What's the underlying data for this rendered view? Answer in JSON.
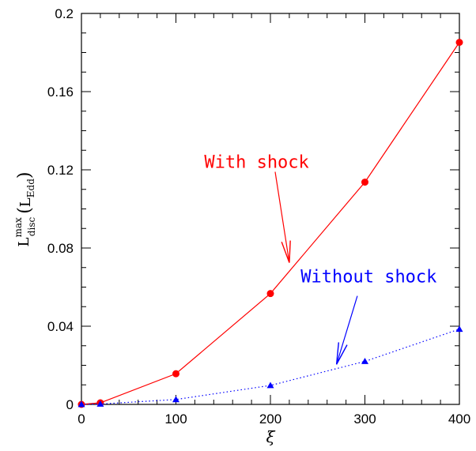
{
  "chart_data": {
    "type": "line",
    "xlabel": "ξ",
    "ylabel": {
      "main": "L",
      "sup": "max",
      "sub": "disc",
      "unit_open": "(",
      "unit_main": "L",
      "unit_sub": "Edd",
      "unit_close": ")"
    },
    "xlim": [
      0,
      400
    ],
    "ylim": [
      0,
      0.2
    ],
    "xticks": [
      0,
      100,
      200,
      300,
      400
    ],
    "xtick_labels": [
      "0",
      "100",
      "200",
      "300",
      "400"
    ],
    "yticks": [
      0,
      0.04,
      0.08,
      0.12,
      0.16,
      0.2
    ],
    "ytick_labels": [
      "0",
      "0.04",
      "0.08",
      "0.12",
      "0.16",
      "0.2"
    ],
    "grid": false,
    "series": [
      {
        "name": "With shock",
        "color": "#ff0000",
        "marker": "circle",
        "line_style": "solid",
        "x": [
          0,
          20,
          100,
          200,
          300,
          400
        ],
        "y": [
          0.0,
          0.0008,
          0.0157,
          0.0567,
          0.1137,
          0.1852
        ]
      },
      {
        "name": "Without shock",
        "color": "#0000ff",
        "marker": "triangle",
        "line_style": "dotted",
        "x": [
          0,
          20,
          100,
          200,
          300,
          400
        ],
        "y": [
          0.0,
          0.0002,
          0.0025,
          0.0097,
          0.022,
          0.0385
        ]
      }
    ],
    "annotations": [
      {
        "text": "With shock",
        "color": "#ff0000",
        "text_at": [
          130,
          0.121
        ],
        "arrow_from": [
          205,
          0.119
        ],
        "arrow_to": [
          220,
          0.0725
        ]
      },
      {
        "text": "Without shock",
        "color": "#0000ff",
        "text_at": [
          232,
          0.0625
        ],
        "arrow_from": [
          292,
          0.0555
        ],
        "arrow_to": [
          270,
          0.0205
        ]
      }
    ]
  }
}
